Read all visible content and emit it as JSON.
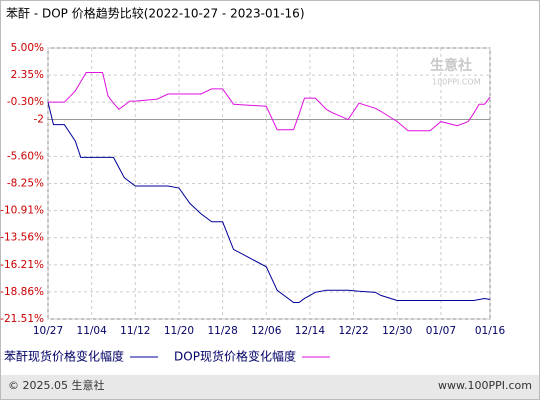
{
  "chart_data": {
    "type": "line",
    "title": "苯酐 - DOP 价格趋势比较(2022-10-27 - 2023-01-16)",
    "x": [
      "10/27",
      "10/28",
      "10/30",
      "11/01",
      "11/02",
      "11/03",
      "11/06",
      "11/07",
      "11/08",
      "11/09",
      "11/10",
      "11/11",
      "11/12",
      "11/16",
      "11/18",
      "11/20",
      "11/22",
      "11/24",
      "11/26",
      "11/28",
      "11/30",
      "12/06",
      "12/08",
      "12/11",
      "12/12",
      "12/13",
      "12/14",
      "12/15",
      "12/17",
      "12/18",
      "12/21",
      "12/23",
      "12/26",
      "12/27",
      "12/30",
      "01/01",
      "01/05",
      "01/07",
      "01/10",
      "01/12",
      "01/13",
      "01/14",
      "01/15",
      "01/16"
    ],
    "series": [
      {
        "name": "苯酐现货价格变化幅度",
        "color": "#000099",
        "values": [
          -0.3,
          -2.5,
          -2.5,
          -4.1,
          -5.7,
          -5.7,
          -5.7,
          -5.7,
          -5.7,
          -6.7,
          -7.7,
          -8.1,
          -8.5,
          -8.5,
          -8.5,
          -8.7,
          -10.2,
          -11.2,
          -12,
          -12,
          -14.7,
          -16.4,
          -18.7,
          -19.9,
          -19.9,
          -19.5,
          -19.2,
          -18.9,
          -18.7,
          -18.7,
          -18.7,
          -18.8,
          -18.9,
          -19.2,
          -19.7,
          -19.7,
          -19.7,
          -19.7,
          -19.7,
          -19.7,
          -19.7,
          -19.6,
          -19.5,
          -19.6
        ]
      },
      {
        "name": "DOP现货价格变化幅度",
        "color": "#e010e0",
        "values": [
          -0.3,
          -0.3,
          -0.3,
          0.8,
          1.7,
          2.6,
          2.6,
          0.3,
          -0.4,
          -1.0,
          -0.6,
          -0.2,
          -0.2,
          0,
          0.5,
          0.5,
          0.5,
          0.5,
          1.0,
          1.0,
          -0.5,
          -0.7,
          -3.0,
          -3.0,
          -1.5,
          0.1,
          0.1,
          0.1,
          -1.0,
          -1.3,
          -2.0,
          -0.4,
          -0.9,
          -1.2,
          -2.2,
          -3.1,
          -3.1,
          -2.2,
          -2.6,
          -2.2,
          -1.4,
          -0.5,
          -0.5,
          0.2
        ]
      }
    ],
    "xticks": [
      "10/27",
      "11/04",
      "11/12",
      "11/20",
      "11/28",
      "12/06",
      "12/14",
      "12/22",
      "12/30",
      "01/07",
      "01/16"
    ],
    "ylim": [
      -21.51,
      5.0
    ],
    "yticks": [
      {
        "value": 5.0,
        "label": "5.00%"
      },
      {
        "value": 2.35,
        "label": "2.35%"
      },
      {
        "value": -0.3,
        "label": "-0.30%"
      },
      -2,
      {
        "value": -5.6,
        "label": "-5.60%"
      },
      {
        "value": -8.25,
        "label": "-8.25%"
      },
      {
        "value": -10.91,
        "label": "-10.91%"
      },
      {
        "value": -13.56,
        "label": "-13.56%"
      },
      {
        "value": -16.21,
        "label": "-16.21%"
      },
      {
        "value": -18.86,
        "label": "-18.86%"
      },
      {
        "value": -21.51,
        "label": "-21.51%"
      }
    ],
    "grid": true
  },
  "watermark": {
    "name": "生意社",
    "site": "100PPI.COM"
  },
  "footer": {
    "copyright": "© 2025.05 生意社",
    "website": "www.100PPI.com"
  }
}
